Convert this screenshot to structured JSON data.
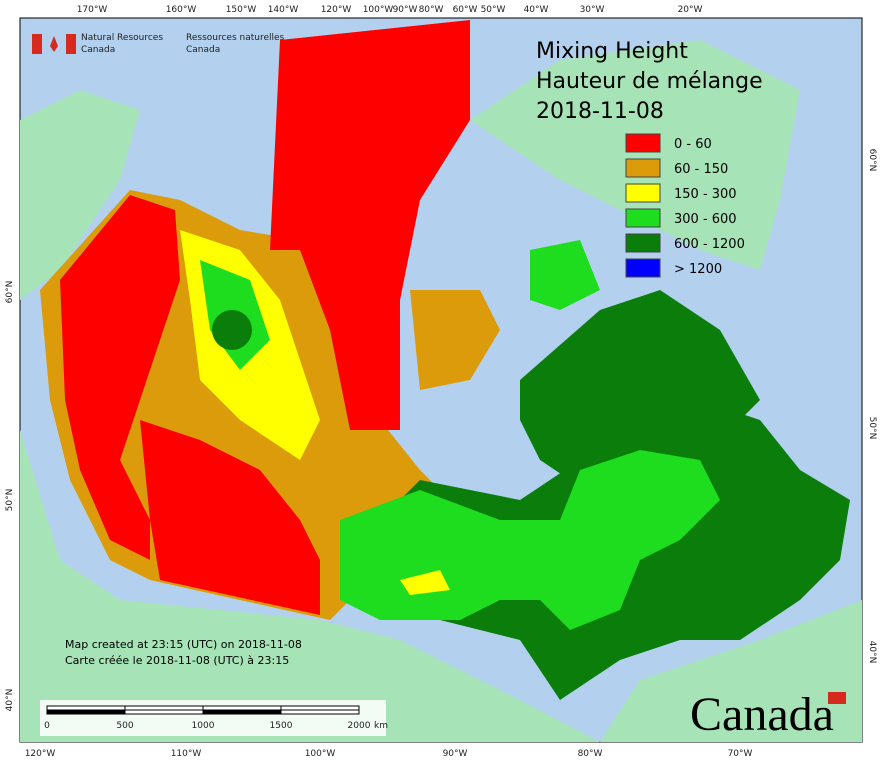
{
  "header": {
    "agency_en": "Natural Resources\nCanada",
    "agency_fr": "Ressources naturelles\nCanada"
  },
  "title": {
    "line1": "Mixing Height",
    "line2": "Hauteur de mélange",
    "date": "2018-11-08"
  },
  "legend": [
    {
      "label": "0 - 60",
      "color": "#ff0000"
    },
    {
      "label": "60 - 150",
      "color": "#dc9b0a"
    },
    {
      "label": "150 - 300",
      "color": "#ffff00"
    },
    {
      "label": "300 - 600",
      "color": "#1edc1e"
    },
    {
      "label": "600 - 1200",
      "color": "#0a7d0a"
    },
    {
      "label": "> 1200",
      "color": "#0000ff"
    }
  ],
  "graticule": {
    "top": [
      "170°W",
      "160°W",
      "150°W",
      "140°W",
      "120°W",
      "100°W",
      "90°W",
      "80°W",
      "60°W",
      "50°W",
      "40°W",
      "30°W",
      "20°W"
    ],
    "bottom": [
      "120°W",
      "110°W",
      "100°W",
      "90°W",
      "80°W",
      "70°W"
    ],
    "left": [
      "60°N",
      "50°N",
      "40°N"
    ],
    "right": [
      "60°N",
      "50°N",
      "40°N"
    ]
  },
  "footer": {
    "created_en": "Map created at 23:15 (UTC) on 2018-11-08",
    "created_fr": "Carte créée le 2018-11-08 (UTC) à 23:15"
  },
  "scale_bar": {
    "labels": [
      "0",
      "500",
      "1000",
      "1500",
      "2000"
    ],
    "unit": "km"
  },
  "wordmark": "Canada"
}
